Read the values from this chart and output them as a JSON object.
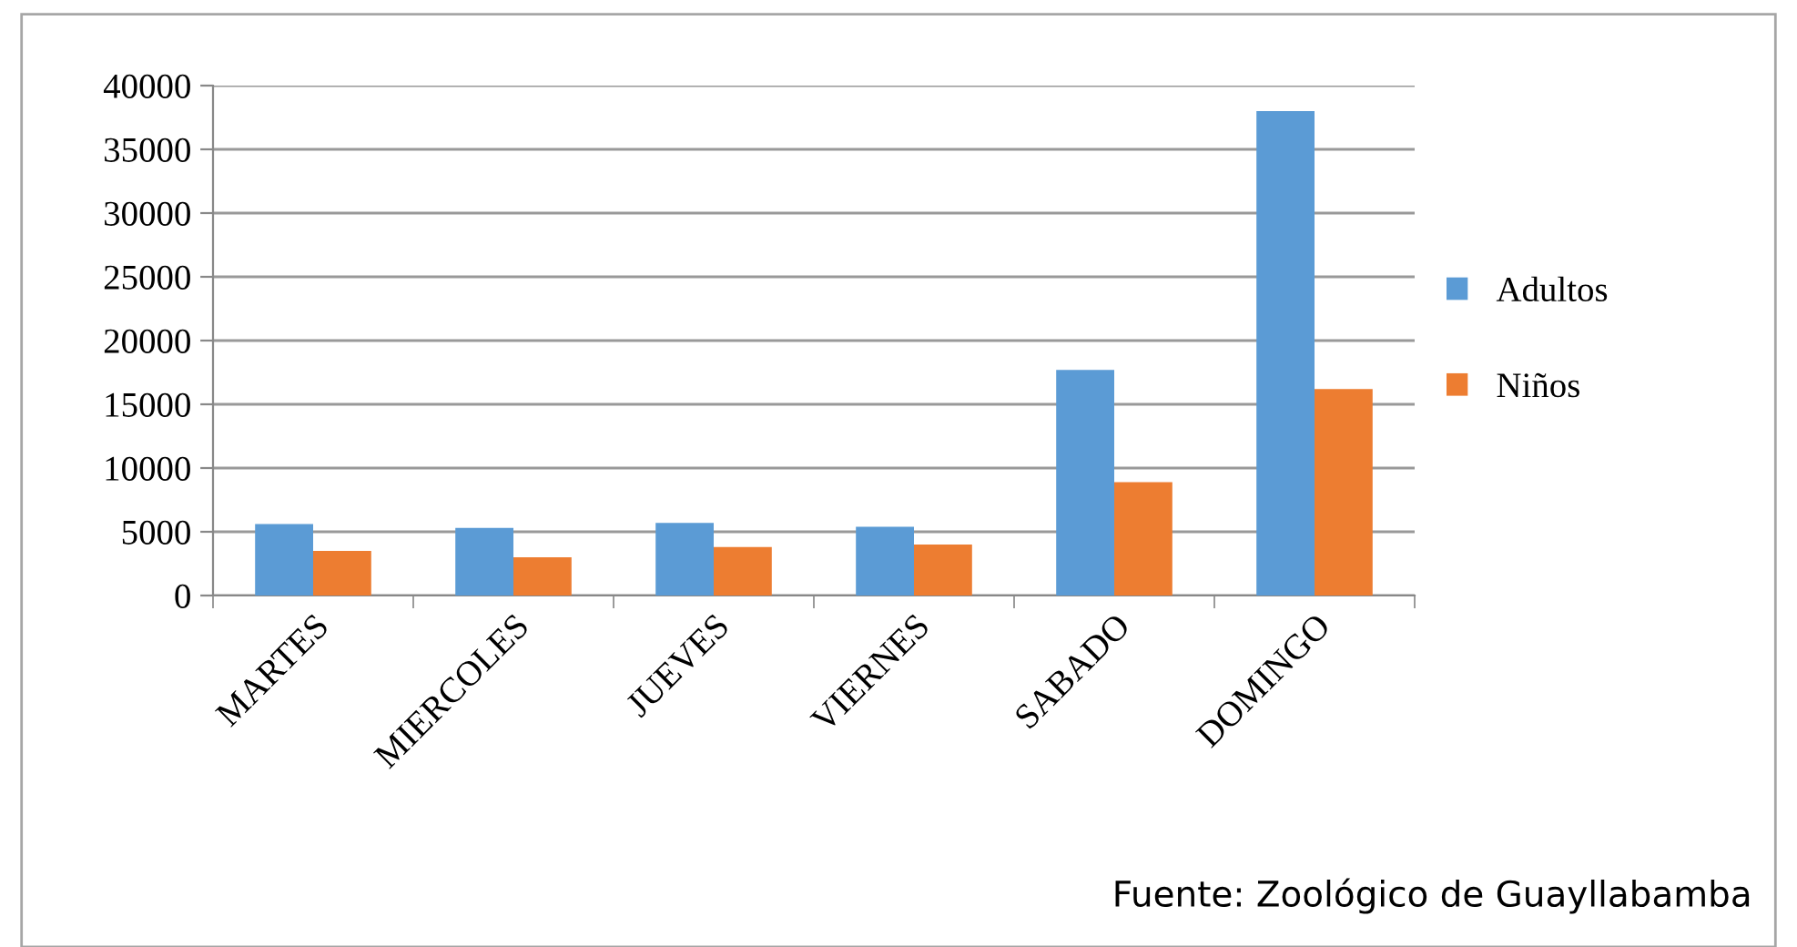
{
  "chart_data": {
    "type": "bar",
    "categories": [
      "MARTES",
      "MIERCOLES",
      "JUEVES",
      "VIERNES",
      "SABADO",
      "DOMINGO"
    ],
    "series": [
      {
        "name": "Adultos",
        "color": "#5b9bd5",
        "values": [
          5600,
          5300,
          5700,
          5400,
          17700,
          38000
        ]
      },
      {
        "name": "Niños",
        "color": "#ed7d31",
        "values": [
          3500,
          3000,
          3800,
          4000,
          8900,
          16200
        ]
      }
    ],
    "ylim": [
      0,
      40000
    ],
    "yticks": [
      0,
      5000,
      10000,
      15000,
      20000,
      25000,
      30000,
      35000,
      40000
    ],
    "grid": "y",
    "legend": "right",
    "annotations": [
      "Fuente: Zoológico de Guayllabamba"
    ]
  }
}
